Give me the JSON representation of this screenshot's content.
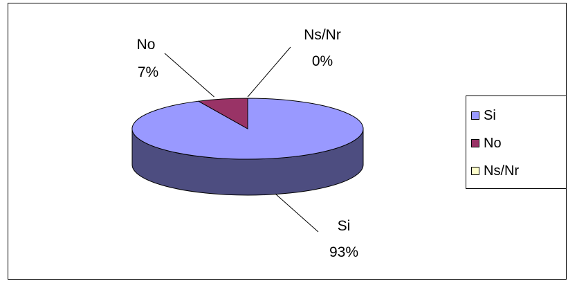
{
  "chart_data": {
    "type": "pie",
    "style": "3d",
    "categories": [
      "Si",
      "No",
      "Ns/Nr"
    ],
    "values": [
      93,
      7,
      0
    ],
    "value_labels": [
      "93%",
      "7%",
      "0%"
    ],
    "colors": {
      "Si": "#9999FF",
      "No": "#993366",
      "Ns/Nr": "#FFFFCC",
      "Si_side": "#4D4D80",
      "No_side": "#4D1A33"
    },
    "title": "",
    "legend": {
      "placement": "right",
      "items": [
        "Si",
        "No",
        "Ns/Nr"
      ]
    }
  }
}
